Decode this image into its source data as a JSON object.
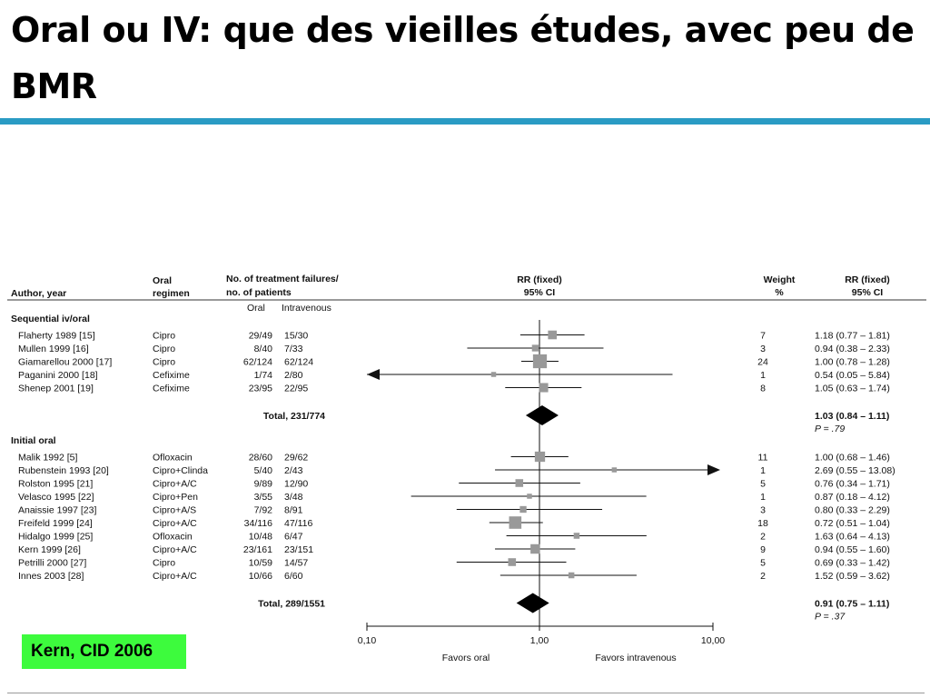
{
  "slide": {
    "title": "Oral ou IV: que des vieilles études, avec peu de BMR",
    "source": "Kern, CID 2006",
    "accent_color": "#2a9bc4",
    "badge_color": "#3dfb3d"
  },
  "headers": {
    "author": "Author, year",
    "regimen_l1": "Oral",
    "regimen_l2": "regimen",
    "failures_l1": "No. of treatment failures/",
    "failures_l2": "no. of patients",
    "oral": "Oral",
    "iv": "Intravenous",
    "rrplot_l1": "RR (fixed)",
    "rrplot_l2": "95% CI",
    "weight_l1": "Weight",
    "weight_l2": "%",
    "rrtext_l1": "RR (fixed)",
    "rrtext_l2": "95% CI"
  },
  "axis": {
    "ticks": [
      "0,10",
      "1,00",
      "10,00"
    ],
    "favors_left": "Favors oral",
    "favors_right": "Favors intravenous"
  },
  "chart_data": {
    "type": "forest",
    "x_scale": "log",
    "xlim": [
      0.1,
      10
    ],
    "reference_line": 1.0,
    "groups": [
      {
        "name": "Sequential iv/oral",
        "studies": [
          {
            "author": "Flaherty 1989 [15]",
            "regimen": "Cipro",
            "oral": "29/49",
            "iv": "15/30",
            "weight": "7",
            "rr": 1.18,
            "lo": 0.77,
            "hi": 1.81,
            "text": "1.18  (0.77 – 1.81)"
          },
          {
            "author": "Mullen 1999 [16]",
            "regimen": "Cipro",
            "oral": "8/40",
            "iv": "7/33",
            "weight": "3",
            "rr": 0.94,
            "lo": 0.38,
            "hi": 2.33,
            "text": "0.94  (0.38 – 2.33)"
          },
          {
            "author": "Giamarellou 2000 [17]",
            "regimen": "Cipro",
            "oral": "62/124",
            "iv": "62/124",
            "weight": "24",
            "rr": 1.0,
            "lo": 0.78,
            "hi": 1.28,
            "text": "1.00  (0.78 – 1.28)"
          },
          {
            "author": "Paganini 2000 [18]",
            "regimen": "Cefixime",
            "oral": "1/74",
            "iv": "2/80",
            "weight": "1",
            "rr": 0.54,
            "lo": 0.05,
            "hi": 5.84,
            "text": "0.54  (0.05 – 5.84)"
          },
          {
            "author": "Shenep 2001 [19]",
            "regimen": "Cefixime",
            "oral": "23/95",
            "iv": "22/95",
            "weight": "8",
            "rr": 1.05,
            "lo": 0.63,
            "hi": 1.74,
            "text": "1.05  (0.63 – 1.74)"
          }
        ],
        "total": {
          "label": "Total, 231/774",
          "rr": 1.03,
          "lo": 0.84,
          "hi": 1.11,
          "text": "1.03  (0.84 – 1.11)",
          "p": "P = .79"
        }
      },
      {
        "name": "Initial oral",
        "studies": [
          {
            "author": "Malik 1992 [5]",
            "regimen": "Ofloxacin",
            "oral": "28/60",
            "iv": "29/62",
            "weight": "11",
            "rr": 1.0,
            "lo": 0.68,
            "hi": 1.46,
            "text": "1.00  (0.68 – 1.46)"
          },
          {
            "author": "Rubenstein 1993 [20]",
            "regimen": "Cipro+Clinda",
            "oral": "5/40",
            "iv": "2/43",
            "weight": "1",
            "rr": 2.69,
            "lo": 0.55,
            "hi": 13.08,
            "text": "2.69  (0.55 – 13.08)"
          },
          {
            "author": "Rolston 1995 [21]",
            "regimen": "Cipro+A/C",
            "oral": "9/89",
            "iv": "12/90",
            "weight": "5",
            "rr": 0.76,
            "lo": 0.34,
            "hi": 1.71,
            "text": "0.76  (0.34 – 1.71)"
          },
          {
            "author": "Velasco 1995 [22]",
            "regimen": "Cipro+Pen",
            "oral": "3/55",
            "iv": "3/48",
            "weight": "1",
            "rr": 0.87,
            "lo": 0.18,
            "hi": 4.12,
            "text": "0.87  (0.18 – 4.12)"
          },
          {
            "author": "Anaissie 1997 [23]",
            "regimen": "Cipro+A/S",
            "oral": "7/92",
            "iv": "8/91",
            "weight": "3",
            "rr": 0.8,
            "lo": 0.33,
            "hi": 2.29,
            "text": "0.80  (0.33 – 2.29)"
          },
          {
            "author": "Freifeld 1999 [24]",
            "regimen": "Cipro+A/C",
            "oral": "34/116",
            "iv": "47/116",
            "weight": "18",
            "rr": 0.72,
            "lo": 0.51,
            "hi": 1.04,
            "text": "0.72  (0.51 – 1.04)"
          },
          {
            "author": "Hidalgo 1999 [25]",
            "regimen": "Ofloxacin",
            "oral": "10/48",
            "iv": "6/47",
            "weight": "2",
            "rr": 1.63,
            "lo": 0.64,
            "hi": 4.13,
            "text": "1.63  (0.64 – 4.13)"
          },
          {
            "author": "Kern 1999 [26]",
            "regimen": "Cipro+A/C",
            "oral": "23/161",
            "iv": "23/151",
            "weight": "9",
            "rr": 0.94,
            "lo": 0.55,
            "hi": 1.6,
            "text": "0.94  (0.55 – 1.60)"
          },
          {
            "author": "Petrilli 2000 [27]",
            "regimen": "Cipro",
            "oral": "10/59",
            "iv": "14/57",
            "weight": "5",
            "rr": 0.69,
            "lo": 0.33,
            "hi": 1.42,
            "text": "0.69  (0.33 – 1.42)"
          },
          {
            "author": "Innes 2003 [28]",
            "regimen": "Cipro+A/C",
            "oral": "10/66",
            "iv": "6/60",
            "weight": "2",
            "rr": 1.52,
            "lo": 0.59,
            "hi": 3.62,
            "text": "1.52  (0.59 – 3.62)"
          }
        ],
        "total": {
          "label": "Total, 289/1551",
          "rr": 0.91,
          "lo": 0.75,
          "hi": 1.11,
          "text": "0.91  (0.75 – 1.11)",
          "p": "P = .37"
        }
      }
    ]
  }
}
